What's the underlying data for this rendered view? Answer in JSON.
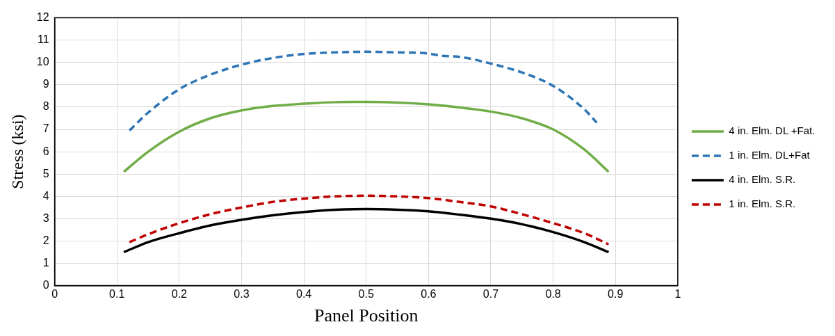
{
  "chart_data": {
    "type": "line",
    "xlabel": "Panel Position",
    "ylabel": "Stress (ksi)",
    "xlim": [
      0,
      1
    ],
    "xticks": [
      0,
      0.1,
      0.2,
      0.3,
      0.4,
      0.5,
      0.6,
      0.7,
      0.8,
      0.9,
      1
    ],
    "ylim": [
      0,
      12
    ],
    "yticks": [
      0,
      1,
      2,
      3,
      4,
      5,
      6,
      7,
      8,
      9,
      10,
      11,
      12
    ],
    "grid": true,
    "legend": "right",
    "marker": "none",
    "series": [
      {
        "name": "4 in. Elm. DL +Fat.",
        "color": "#70ad47",
        "line_style": "solid",
        "x": [
          0.111,
          0.15,
          0.2,
          0.25,
          0.3,
          0.35,
          0.4,
          0.45,
          0.5,
          0.55,
          0.6,
          0.65,
          0.7,
          0.75,
          0.8,
          0.85,
          0.889
        ],
        "values": [
          5.1,
          6.0,
          6.9,
          7.5,
          7.85,
          8.05,
          8.15,
          8.22,
          8.23,
          8.2,
          8.12,
          7.98,
          7.8,
          7.5,
          7.0,
          6.1,
          5.1
        ]
      },
      {
        "name": "1 in. Elm. DL+Fat",
        "color": "#2e75b6",
        "line_style": "dashed",
        "x": [
          0.12,
          0.15,
          0.2,
          0.25,
          0.3,
          0.35,
          0.4,
          0.45,
          0.5,
          0.55,
          0.6,
          0.62,
          0.65,
          0.7,
          0.75,
          0.8,
          0.85,
          0.87
        ],
        "values": [
          6.95,
          7.75,
          8.8,
          9.45,
          9.9,
          10.2,
          10.38,
          10.45,
          10.48,
          10.45,
          10.4,
          10.3,
          10.25,
          9.95,
          9.55,
          8.95,
          7.9,
          7.3
        ]
      },
      {
        "name": "4 in. Elm. S.R.",
        "color": "#000000",
        "line_style": "solid",
        "x": [
          0.111,
          0.15,
          0.2,
          0.25,
          0.3,
          0.35,
          0.4,
          0.45,
          0.5,
          0.55,
          0.6,
          0.65,
          0.7,
          0.75,
          0.8,
          0.85,
          0.889
        ],
        "values": [
          1.5,
          1.95,
          2.35,
          2.7,
          2.95,
          3.15,
          3.3,
          3.4,
          3.43,
          3.4,
          3.33,
          3.18,
          3.0,
          2.75,
          2.4,
          1.95,
          1.5
        ]
      },
      {
        "name": "1 in. Elm. S.R.",
        "color": "#c00000",
        "line_style": "dashed",
        "x": [
          0.12,
          0.15,
          0.2,
          0.25,
          0.3,
          0.35,
          0.4,
          0.45,
          0.5,
          0.55,
          0.6,
          0.65,
          0.7,
          0.75,
          0.8,
          0.85,
          0.889
        ],
        "values": [
          1.95,
          2.3,
          2.8,
          3.2,
          3.5,
          3.75,
          3.9,
          4.0,
          4.03,
          4.0,
          3.92,
          3.75,
          3.55,
          3.2,
          2.8,
          2.35,
          1.85
        ]
      }
    ]
  }
}
